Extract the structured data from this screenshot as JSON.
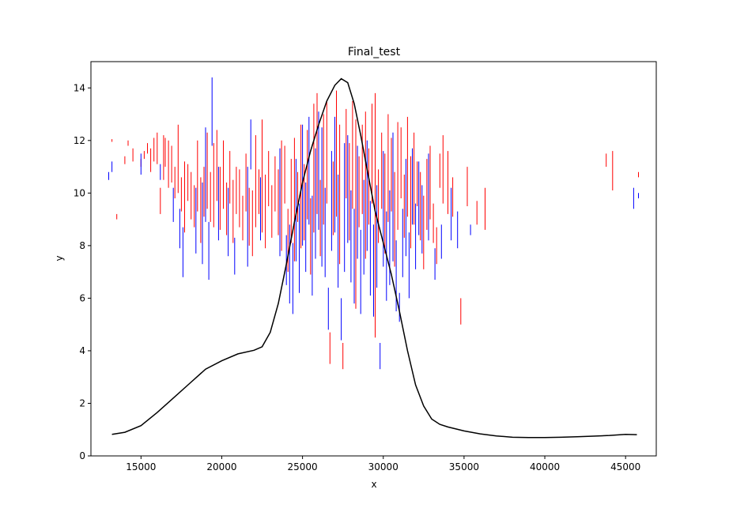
{
  "chart_data": {
    "type": "line",
    "title": "Final_test",
    "xlabel": "x",
    "ylabel": "y",
    "xlim": [
      11900,
      46900
    ],
    "ylim": [
      0,
      15
    ],
    "x_ticks": [
      15000,
      20000,
      25000,
      30000,
      35000,
      40000,
      45000
    ],
    "y_ticks": [
      0,
      2,
      4,
      6,
      8,
      10,
      12,
      14
    ],
    "x_tick_labels": [
      "15000",
      "20000",
      "25000",
      "30000",
      "35000",
      "40000",
      "45000"
    ],
    "y_tick_labels": [
      "0",
      "2",
      "4",
      "6",
      "8",
      "10",
      "12",
      "14"
    ],
    "grid": false,
    "colors": {
      "red": "#ff0000",
      "blue": "#0000ff",
      "line": "#000000",
      "frame": "#000000"
    },
    "curve": {
      "x": [
        13200,
        14000,
        15000,
        16000,
        17000,
        18000,
        19000,
        20000,
        21000,
        22000,
        22500,
        23000,
        23500,
        24000,
        24500,
        25000,
        25500,
        26000,
        26500,
        27000,
        27400,
        27800,
        28200,
        28600,
        29000,
        29500,
        30000,
        30500,
        31000,
        31500,
        32000,
        32500,
        33000,
        33500,
        34000,
        35000,
        36000,
        37000,
        38000,
        39000,
        40000,
        41000,
        42000,
        43000,
        44000,
        45000,
        45700
      ],
      "y": [
        0.82,
        0.9,
        1.15,
        1.65,
        2.2,
        2.75,
        3.3,
        3.62,
        3.88,
        4.02,
        4.15,
        4.7,
        5.8,
        7.3,
        8.9,
        10.4,
        11.6,
        12.6,
        13.5,
        14.1,
        14.35,
        14.2,
        13.4,
        12.2,
        10.9,
        9.3,
        8.1,
        6.9,
        5.5,
        4.0,
        2.7,
        1.9,
        1.4,
        1.2,
        1.1,
        0.95,
        0.84,
        0.76,
        0.71,
        0.7,
        0.7,
        0.71,
        0.73,
        0.75,
        0.78,
        0.82,
        0.81
      ]
    },
    "error_bar_segments": {
      "description": "vertical segments: [x, y_low, y_high]",
      "red": [
        [
          13200,
          11.95,
          12.05
        ],
        [
          13500,
          9.0,
          9.2
        ],
        [
          14000,
          11.1,
          11.4
        ],
        [
          14200,
          11.8,
          12.0
        ],
        [
          14500,
          11.2,
          11.7
        ],
        [
          15000,
          11.0,
          11.3
        ],
        [
          15200,
          11.3,
          11.6
        ],
        [
          15400,
          11.5,
          11.9
        ],
        [
          15600,
          10.8,
          11.7
        ],
        [
          15800,
          11.2,
          12.1
        ],
        [
          16000,
          11.1,
          12.3
        ],
        [
          16200,
          9.2,
          10.2
        ],
        [
          16400,
          10.5,
          12.2
        ],
        [
          16500,
          11.0,
          12.1
        ],
        [
          16700,
          10.2,
          12.0
        ],
        [
          16900,
          10.4,
          11.8
        ],
        [
          17100,
          9.8,
          11.0
        ],
        [
          17300,
          10.0,
          12.6
        ],
        [
          17500,
          9.3,
          10.6
        ],
        [
          17700,
          8.5,
          11.2
        ],
        [
          17900,
          9.7,
          11.1
        ],
        [
          18100,
          9.0,
          10.8
        ],
        [
          18300,
          8.7,
          10.3
        ],
        [
          18500,
          9.3,
          12.0
        ],
        [
          18700,
          8.1,
          10.6
        ],
        [
          18900,
          9.1,
          11.0
        ],
        [
          19100,
          9.4,
          12.3
        ],
        [
          19300,
          8.9,
          10.8
        ],
        [
          19500,
          8.7,
          11.9
        ],
        [
          19700,
          9.7,
          12.4
        ],
        [
          19900,
          8.6,
          11.0
        ],
        [
          20100,
          9.4,
          12.0
        ],
        [
          20300,
          8.4,
          10.4
        ],
        [
          20500,
          9.6,
          11.6
        ],
        [
          20700,
          8.1,
          10.5
        ],
        [
          20900,
          9.2,
          11.0
        ],
        [
          21100,
          8.7,
          10.9
        ],
        [
          21300,
          8.2,
          9.9
        ],
        [
          21500,
          9.3,
          11.5
        ],
        [
          21700,
          8.0,
          10.2
        ],
        [
          21900,
          7.6,
          10.1
        ],
        [
          22100,
          8.7,
          12.2
        ],
        [
          22300,
          9.2,
          10.9
        ],
        [
          22500,
          8.5,
          12.8
        ],
        [
          22700,
          7.9,
          10.7
        ],
        [
          22900,
          9.5,
          11.6
        ],
        [
          23100,
          8.3,
          10.3
        ],
        [
          23300,
          9.3,
          11.4
        ],
        [
          23500,
          8.4,
          10.9
        ],
        [
          23700,
          7.8,
          12.0
        ],
        [
          23900,
          9.6,
          11.8
        ],
        [
          24100,
          7.0,
          9.4
        ],
        [
          24300,
          8.1,
          11.3
        ],
        [
          24500,
          7.4,
          12.1
        ],
        [
          24700,
          8.9,
          10.8
        ],
        [
          24900,
          7.9,
          12.6
        ],
        [
          25100,
          8.2,
          11.1
        ],
        [
          25300,
          9.0,
          12.4
        ],
        [
          25500,
          6.9,
          9.8
        ],
        [
          25700,
          8.5,
          13.4
        ],
        [
          25900,
          9.2,
          13.8
        ],
        [
          26100,
          7.6,
          10.5
        ],
        [
          26300,
          8.8,
          13.0
        ],
        [
          26500,
          9.6,
          13.5
        ],
        [
          26700,
          3.5,
          4.7
        ],
        [
          26900,
          8.4,
          11.2
        ],
        [
          27100,
          9.1,
          13.9
        ],
        [
          27300,
          7.3,
          12.6
        ],
        [
          27500,
          3.3,
          4.3
        ],
        [
          27700,
          9.8,
          13.2
        ],
        [
          27900,
          8.2,
          11.9
        ],
        [
          28100,
          9.4,
          13.5
        ],
        [
          28300,
          5.6,
          12.8
        ],
        [
          28500,
          8.7,
          11.4
        ],
        [
          28700,
          9.2,
          12.6
        ],
        [
          28900,
          7.5,
          13.1
        ],
        [
          29100,
          8.8,
          11.7
        ],
        [
          29300,
          9.6,
          13.4
        ],
        [
          29500,
          4.5,
          13.8
        ],
        [
          29700,
          8.1,
          10.9
        ],
        [
          29900,
          9.4,
          12.3
        ],
        [
          30100,
          7.7,
          11.5
        ],
        [
          30300,
          8.9,
          13.0
        ],
        [
          30500,
          9.3,
          12.1
        ],
        [
          30700,
          7.2,
          10.8
        ],
        [
          30900,
          8.6,
          12.7
        ],
        [
          31100,
          9.8,
          12.5
        ],
        [
          31300,
          8.3,
          10.7
        ],
        [
          31500,
          9.1,
          12.9
        ],
        [
          31700,
          7.9,
          11.4
        ],
        [
          31900,
          8.8,
          12.3
        ],
        [
          32100,
          9.5,
          11.2
        ],
        [
          32300,
          8.2,
          10.8
        ],
        [
          32500,
          7.1,
          9.9
        ],
        [
          32700,
          8.6,
          11.3
        ],
        [
          32900,
          9.0,
          11.8
        ],
        [
          33100,
          8.1,
          9.6
        ],
        [
          33300,
          7.3,
          8.7
        ],
        [
          33500,
          10.2,
          11.5
        ],
        [
          33700,
          9.6,
          12.2
        ],
        [
          34000,
          9.2,
          11.6
        ],
        [
          34300,
          9.1,
          10.6
        ],
        [
          34800,
          5.0,
          6.0
        ],
        [
          35200,
          9.5,
          11.0
        ],
        [
          35800,
          8.8,
          9.7
        ],
        [
          36300,
          8.6,
          10.2
        ],
        [
          43800,
          11.0,
          11.5
        ],
        [
          44200,
          10.1,
          11.6
        ],
        [
          45800,
          10.6,
          10.8
        ]
      ],
      "blue": [
        [
          13000,
          10.5,
          10.8
        ],
        [
          13200,
          10.8,
          11.2
        ],
        [
          15000,
          10.7,
          11.5
        ],
        [
          16200,
          10.5,
          11.1
        ],
        [
          17000,
          8.9,
          10.2
        ],
        [
          17400,
          7.9,
          9.4
        ],
        [
          17600,
          6.8,
          8.7
        ],
        [
          18400,
          7.7,
          10.2
        ],
        [
          18800,
          7.3,
          10.4
        ],
        [
          19000,
          8.9,
          12.5
        ],
        [
          19200,
          6.7,
          8.9
        ],
        [
          19400,
          11.8,
          14.4
        ],
        [
          19800,
          8.2,
          11.0
        ],
        [
          20400,
          7.6,
          10.2
        ],
        [
          20800,
          6.9,
          8.3
        ],
        [
          21600,
          7.2,
          11.0
        ],
        [
          21800,
          10.9,
          12.8
        ],
        [
          22400,
          8.2,
          10.6
        ],
        [
          23600,
          7.6,
          11.7
        ],
        [
          24000,
          6.5,
          8.4
        ],
        [
          24200,
          5.8,
          8.8
        ],
        [
          24400,
          5.4,
          8.1
        ],
        [
          24600,
          7.4,
          11.3
        ],
        [
          24800,
          6.2,
          9.6
        ],
        [
          25000,
          8.0,
          12.6
        ],
        [
          25200,
          7.0,
          10.4
        ],
        [
          25400,
          8.8,
          12.9
        ],
        [
          25600,
          6.1,
          9.9
        ],
        [
          25800,
          7.5,
          11.7
        ],
        [
          26000,
          8.6,
          13.1
        ],
        [
          26200,
          7.2,
          12.5
        ],
        [
          26400,
          6.8,
          10.2
        ],
        [
          26600,
          4.8,
          6.4
        ],
        [
          26800,
          7.8,
          11.6
        ],
        [
          27000,
          8.5,
          12.9
        ],
        [
          27200,
          6.4,
          10.7
        ],
        [
          27400,
          4.4,
          6.0
        ],
        [
          27600,
          7.0,
          11.9
        ],
        [
          27800,
          8.1,
          12.2
        ],
        [
          28000,
          6.6,
          10.1
        ],
        [
          28200,
          5.8,
          9.4
        ],
        [
          28400,
          7.5,
          11.8
        ],
        [
          28600,
          5.4,
          8.6
        ],
        [
          28800,
          6.9,
          10.5
        ],
        [
          29000,
          7.8,
          12.0
        ],
        [
          29200,
          6.1,
          9.7
        ],
        [
          29400,
          5.3,
          8.8
        ],
        [
          29600,
          6.4,
          10.3
        ],
        [
          29800,
          3.3,
          4.3
        ],
        [
          30000,
          7.2,
          11.6
        ],
        [
          30200,
          5.9,
          9.3
        ],
        [
          30400,
          6.5,
          10.1
        ],
        [
          30600,
          7.4,
          12.3
        ],
        [
          30800,
          5.5,
          8.2
        ],
        [
          31000,
          5.1,
          6.2
        ],
        [
          31200,
          6.8,
          9.4
        ],
        [
          31400,
          7.6,
          11.3
        ],
        [
          31600,
          6.0,
          8.5
        ],
        [
          31800,
          8.8,
          11.7
        ],
        [
          32000,
          7.1,
          9.6
        ],
        [
          32200,
          8.4,
          11.2
        ],
        [
          32400,
          7.7,
          10.3
        ],
        [
          32800,
          8.2,
          11.5
        ],
        [
          33200,
          6.7,
          7.9
        ],
        [
          33600,
          7.5,
          8.8
        ],
        [
          34200,
          8.2,
          10.2
        ],
        [
          34600,
          7.9,
          9.3
        ],
        [
          35400,
          8.4,
          8.8
        ],
        [
          45500,
          9.4,
          10.2
        ],
        [
          45800,
          9.8,
          10.0
        ]
      ]
    }
  }
}
